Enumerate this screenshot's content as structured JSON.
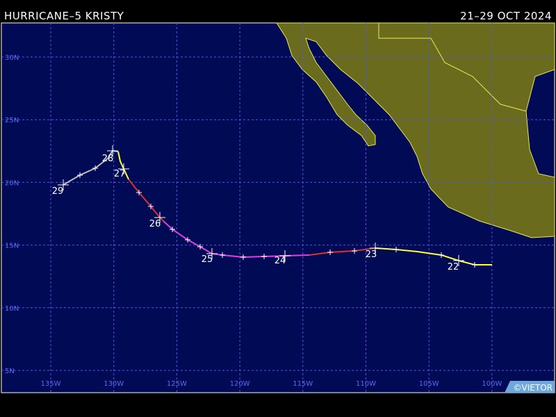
{
  "header": {
    "title": "HURRICANE–5 KRISTY",
    "dates": "21–29 OCT 2024"
  },
  "latitude_labels": [
    "30N",
    "25N",
    "20N",
    "15N",
    "10N",
    "5N"
  ],
  "longitude_labels": [
    "135W",
    "130W",
    "125W",
    "120W",
    "115W",
    "110W",
    "105W",
    "100W"
  ],
  "day_labels": [
    "22",
    "23",
    "24",
    "25",
    "26",
    "27",
    "28",
    "29"
  ],
  "footer": {
    "credit": "©VIETOR"
  }
}
